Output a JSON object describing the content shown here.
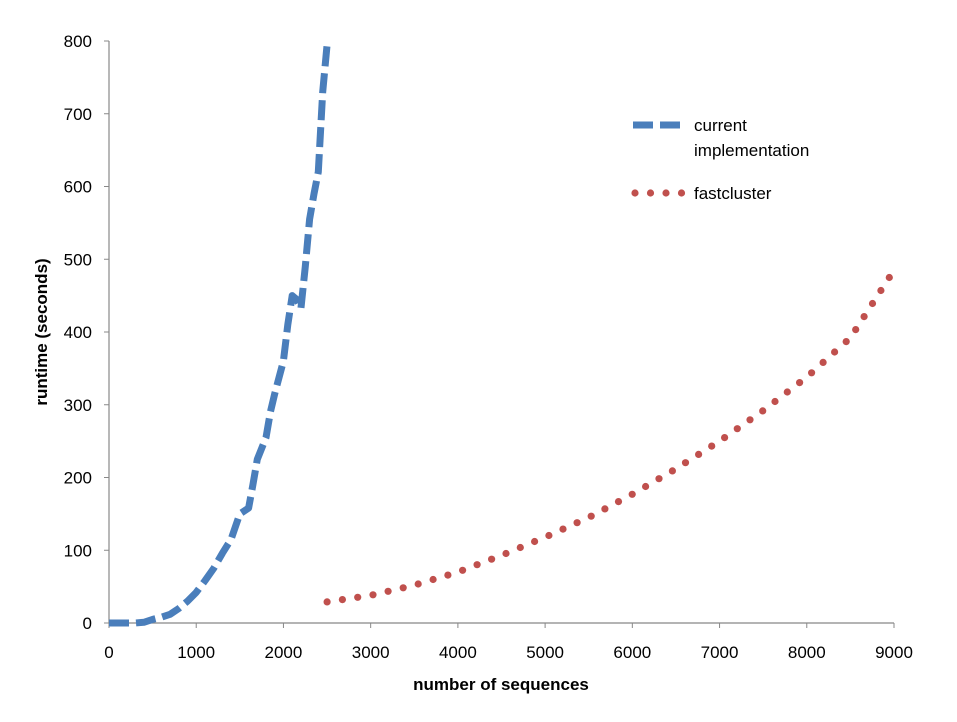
{
  "chart_data": {
    "type": "line",
    "xlabel": "number of sequences",
    "ylabel": "runtime (seconds)",
    "xlim": [
      0,
      9000
    ],
    "ylim": [
      0,
      800
    ],
    "xticks": [
      0,
      1000,
      2000,
      3000,
      4000,
      5000,
      6000,
      7000,
      8000,
      9000
    ],
    "yticks": [
      0,
      100,
      200,
      300,
      400,
      500,
      600,
      700,
      800
    ],
    "grid": false,
    "legend_position": "top-right",
    "series": [
      {
        "name": "current implementation",
        "style": "dashed",
        "color": "#4a7ebb",
        "points": [
          [
            0,
            0
          ],
          [
            100,
            0
          ],
          [
            200,
            0
          ],
          [
            300,
            0
          ],
          [
            400,
            1
          ],
          [
            500,
            5
          ],
          [
            600,
            8
          ],
          [
            700,
            12
          ],
          [
            800,
            20
          ],
          [
            900,
            30
          ],
          [
            1000,
            42
          ],
          [
            1100,
            58
          ],
          [
            1200,
            75
          ],
          [
            1300,
            96
          ],
          [
            1400,
            115
          ],
          [
            1500,
            150
          ],
          [
            1600,
            158
          ],
          [
            1650,
            190
          ],
          [
            1700,
            225
          ],
          [
            1800,
            255
          ],
          [
            1850,
            290
          ],
          [
            1900,
            315
          ],
          [
            2000,
            360
          ],
          [
            2050,
            410
          ],
          [
            2100,
            450
          ],
          [
            2150,
            445
          ],
          [
            2200,
            432
          ],
          [
            2250,
            490
          ],
          [
            2300,
            555
          ],
          [
            2350,
            590
          ],
          [
            2400,
            620
          ],
          [
            2450,
            730
          ],
          [
            2500,
            795
          ]
        ]
      },
      {
        "name": "fastcluster",
        "style": "dotted",
        "color": "#c0504d",
        "points": [
          [
            2500,
            29
          ],
          [
            3000,
            38
          ],
          [
            3500,
            52
          ],
          [
            4000,
            70
          ],
          [
            4500,
            93
          ],
          [
            5000,
            118
          ],
          [
            5500,
            145
          ],
          [
            6000,
            177
          ],
          [
            6500,
            212
          ],
          [
            7000,
            250
          ],
          [
            7500,
            292
          ],
          [
            8000,
            338
          ],
          [
            8500,
            392
          ],
          [
            9000,
            485
          ]
        ]
      }
    ]
  }
}
